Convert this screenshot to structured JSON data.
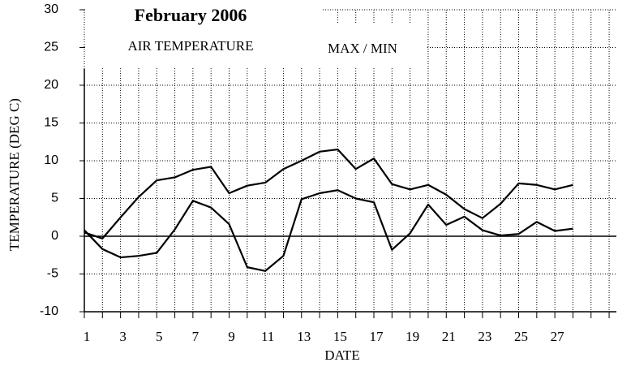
{
  "chart_data": {
    "type": "line",
    "title": "February 2006",
    "subtitle": "AIR TEMPERATURE",
    "annotation": "MAX / MIN",
    "y_label": "TEMPERATURE (DEG C)",
    "x_label": "DATE",
    "x": [
      1,
      2,
      3,
      4,
      5,
      6,
      7,
      8,
      9,
      10,
      11,
      12,
      13,
      14,
      15,
      16,
      17,
      18,
      19,
      20,
      21,
      22,
      23,
      24,
      25,
      26,
      27,
      28
    ],
    "series": [
      {
        "color": "#000000",
        "values": [
          0.5,
          -0.3,
          2.5,
          5.2,
          7.4,
          7.8,
          8.8,
          9.2,
          5.7,
          6.7,
          7.1,
          8.9,
          10.0,
          11.2,
          11.5,
          8.9,
          10.3,
          6.9,
          6.2,
          6.8,
          5.5,
          3.6,
          2.4,
          4.3,
          7.0,
          6.8,
          6.2,
          6.8
        ]
      },
      {
        "color": "#000000",
        "values": [
          0.8,
          -1.7,
          -2.8,
          -2.6,
          -2.2,
          0.9,
          4.7,
          3.8,
          1.6,
          -4.1,
          -4.6,
          -2.6,
          4.9,
          5.7,
          6.1,
          5.0,
          4.5,
          -1.8,
          0.4,
          4.2,
          1.5,
          2.6,
          0.8,
          0.1,
          0.3,
          1.9,
          0.7,
          1.0
        ]
      }
    ],
    "xlim": [
      1,
      30.4
    ],
    "ylim": [
      -10,
      30
    ],
    "xticks": [
      1,
      3,
      5,
      7,
      9,
      11,
      13,
      15,
      17,
      19,
      21,
      23,
      25,
      27
    ],
    "xminor": [
      2,
      4,
      6,
      8,
      10,
      12,
      14,
      16,
      18,
      20,
      22,
      24,
      26,
      28,
      29,
      30
    ],
    "yticks": [
      -10,
      -5,
      0,
      5,
      10,
      15,
      20,
      25,
      30
    ],
    "grid": true
  }
}
